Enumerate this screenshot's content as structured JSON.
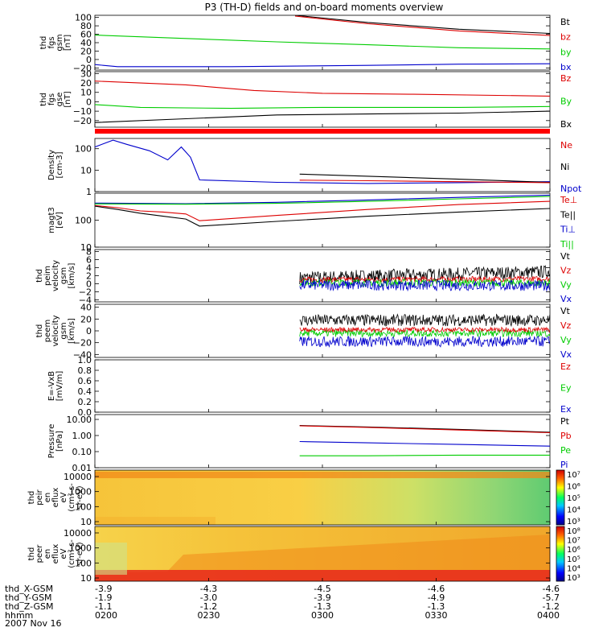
{
  "title": "P3 (TH-D) fields and on-board moments overview",
  "date": "2007 Nov 16",
  "chart_data": [
    {
      "type": "line",
      "ylabel": [
        "thd",
        "fgs",
        "gsm",
        "[nT]"
      ],
      "yticks": [
        "100",
        "80",
        "60",
        "40",
        "20",
        "0",
        "−20"
      ],
      "ylim": [
        -25,
        105
      ],
      "legend": [
        {
          "name": "Bt",
          "color": "#000000"
        },
        {
          "name": "bz",
          "color": "#dd0000"
        },
        {
          "name": "by",
          "color": "#00cc00"
        },
        {
          "name": "bx",
          "color": "#0000cc"
        }
      ],
      "series": [
        {
          "name": "Bt",
          "color": "#000000",
          "x": [
            0.44,
            0.6,
            0.8,
            1.0
          ],
          "y": [
            105,
            88,
            72,
            62
          ]
        },
        {
          "name": "bz",
          "color": "#dd0000",
          "x": [
            0.44,
            0.6,
            0.8,
            1.0
          ],
          "y": [
            103,
            85,
            68,
            57
          ]
        },
        {
          "name": "by",
          "color": "#00cc00",
          "x": [
            0.0,
            0.2,
            0.4,
            0.6,
            0.8,
            1.0
          ],
          "y": [
            58,
            50,
            42,
            35,
            28,
            25
          ]
        },
        {
          "name": "bx",
          "color": "#0000cc",
          "x": [
            0.0,
            0.05,
            0.3,
            0.6,
            0.8,
            1.0
          ],
          "y": [
            -12,
            -17,
            -17,
            -14,
            -11,
            -10
          ]
        }
      ]
    },
    {
      "type": "line",
      "ylabel": [
        "thd",
        "fgs",
        "gse",
        "[nT]"
      ],
      "yticks": [
        "30",
        "20",
        "10",
        "0",
        "−10",
        "−20"
      ],
      "ylim": [
        -27,
        32
      ],
      "legend": [
        {
          "name": "Bz",
          "color": "#dd0000"
        },
        {
          "name": "By",
          "color": "#00cc00"
        },
        {
          "name": "Bx",
          "color": "#000000"
        }
      ],
      "series": [
        {
          "name": "Bz",
          "color": "#dd0000",
          "x": [
            0.0,
            0.2,
            0.35,
            0.5,
            0.7,
            1.0
          ],
          "y": [
            22,
            18,
            12,
            9,
            8,
            6
          ]
        },
        {
          "name": "By",
          "color": "#00cc00",
          "x": [
            0.0,
            0.1,
            0.3,
            0.5,
            0.8,
            1.0
          ],
          "y": [
            -3,
            -6,
            -7,
            -6,
            -6,
            -5
          ]
        },
        {
          "name": "Bx",
          "color": "#000000",
          "x": [
            0.0,
            0.2,
            0.4,
            0.6,
            0.8,
            1.0
          ],
          "y": [
            -22,
            -18,
            -14,
            -13,
            -12,
            -10
          ]
        }
      ]
    },
    {
      "type": "line",
      "yscale": "log",
      "ylabel": [
        "Density",
        "[cm-3]"
      ],
      "yticks": [
        "100",
        "10",
        "1"
      ],
      "ylim": [
        1,
        300
      ],
      "legend": [
        {
          "name": "Ne",
          "color": "#dd0000"
        },
        {
          "name": "Ni",
          "color": "#000000"
        },
        {
          "name": "Npot",
          "color": "#0000cc"
        }
      ],
      "series": [
        {
          "name": "Npot",
          "color": "#0000cc",
          "x": [
            0.0,
            0.04,
            0.07,
            0.12,
            0.16,
            0.19,
            0.21,
            0.23,
            0.4,
            0.6,
            0.8,
            1.0
          ],
          "y": [
            120,
            250,
            160,
            80,
            30,
            120,
            40,
            3.5,
            2.7,
            2.4,
            2.6,
            2.9
          ]
        },
        {
          "name": "Ni",
          "color": "#000000",
          "x": [
            0.45,
            0.6,
            0.8,
            1.0
          ],
          "y": [
            6.5,
            5.2,
            3.8,
            2.7
          ]
        },
        {
          "name": "Ne",
          "color": "#dd0000",
          "x": [
            0.45,
            0.6,
            0.8,
            1.0
          ],
          "y": [
            3.4,
            3.2,
            2.9,
            2.6
          ]
        }
      ]
    },
    {
      "type": "line",
      "yscale": "log",
      "ylabel": [
        "magt3",
        "[eV]"
      ],
      "yticks": [
        "100",
        "10"
      ],
      "ylim": [
        10,
        1000
      ],
      "legend": [
        {
          "name": "Te⊥",
          "color": "#dd0000"
        },
        {
          "name": "Te||",
          "color": "#000000"
        },
        {
          "name": "Ti⊥",
          "color": "#0000cc"
        },
        {
          "name": "Ti||",
          "color": "#00cc00"
        }
      ],
      "series": [
        {
          "name": "Ti⊥",
          "color": "#0000cc",
          "x": [
            0.0,
            0.2,
            0.4,
            0.6,
            0.8,
            1.0
          ],
          "y": [
            430,
            410,
            460,
            560,
            700,
            850
          ]
        },
        {
          "name": "Ti||",
          "color": "#00cc00",
          "x": [
            0.0,
            0.2,
            0.4,
            0.6,
            0.8,
            1.0
          ],
          "y": [
            400,
            390,
            420,
            500,
            620,
            760
          ]
        },
        {
          "name": "Te⊥",
          "color": "#dd0000",
          "x": [
            0.0,
            0.05,
            0.1,
            0.15,
            0.2,
            0.23,
            0.4,
            0.6,
            0.8,
            1.0
          ],
          "y": [
            350,
            290,
            220,
            200,
            170,
            95,
            150,
            250,
            380,
            500
          ]
        },
        {
          "name": "Te||",
          "color": "#000000",
          "x": [
            0.0,
            0.05,
            0.1,
            0.15,
            0.2,
            0.23,
            0.4,
            0.6,
            0.8,
            1.0
          ],
          "y": [
            330,
            250,
            180,
            140,
            110,
            60,
            90,
            140,
            200,
            270
          ]
        }
      ]
    },
    {
      "type": "line",
      "ylabel": [
        "thd",
        "peim",
        "velocity",
        "gsm",
        "[km/s]"
      ],
      "yticks": [
        "8",
        "6",
        "4",
        "2",
        "0",
        "−2",
        "−4"
      ],
      "ylim": [
        -4.5,
        8.5
      ],
      "legend": [
        {
          "name": "Vt",
          "color": "#000000"
        },
        {
          "name": "Vz",
          "color": "#dd0000"
        },
        {
          "name": "Vy",
          "color": "#00cc00"
        },
        {
          "name": "Vx",
          "color": "#0000cc"
        }
      ],
      "noisy_series": [
        {
          "name": "Vt",
          "color": "#000000",
          "start": 0.45,
          "mean_start": 1.5,
          "mean_end": 3.0,
          "spread": 1.6
        },
        {
          "name": "Vz",
          "color": "#dd0000",
          "start": 0.45,
          "mean_start": 1.0,
          "mean_end": 1.2,
          "spread": 0.7
        },
        {
          "name": "Vy",
          "color": "#00cc00",
          "start": 0.45,
          "mean_start": 0.3,
          "mean_end": 0.2,
          "spread": 0.9
        },
        {
          "name": "Vx",
          "color": "#0000cc",
          "start": 0.45,
          "mean_start": -0.3,
          "mean_end": -0.5,
          "spread": 1.3
        }
      ]
    },
    {
      "type": "line",
      "ylabel": [
        "thd",
        "peem",
        "velocity",
        "gsm",
        "[km/s]"
      ],
      "yticks": [
        "40",
        "20",
        "0",
        "−20",
        "−40"
      ],
      "ylim": [
        -45,
        45
      ],
      "legend": [
        {
          "name": "Vt",
          "color": "#000000"
        },
        {
          "name": "Vz",
          "color": "#dd0000"
        },
        {
          "name": "Vy",
          "color": "#00cc00"
        },
        {
          "name": "Vx",
          "color": "#0000cc"
        }
      ],
      "noisy_series": [
        {
          "name": "Vt",
          "color": "#000000",
          "start": 0.45,
          "mean_start": 18,
          "mean_end": 18,
          "spread": 10
        },
        {
          "name": "Vx",
          "color": "#0000cc",
          "start": 0.45,
          "mean_start": -18,
          "mean_end": -18,
          "spread": 9
        },
        {
          "name": "Vy",
          "color": "#00cc00",
          "start": 0.45,
          "mean_start": -4,
          "mean_end": -4,
          "spread": 6
        },
        {
          "name": "Vz",
          "color": "#dd0000",
          "start": 0.45,
          "mean_start": 2,
          "mean_end": 2,
          "spread": 4
        }
      ]
    },
    {
      "type": "line",
      "ylabel": [
        "E=-VxB",
        "[mV/m]"
      ],
      "yticks": [
        "1.0",
        "0.8",
        "0.6",
        "0.4",
        "0.2",
        "0.0"
      ],
      "ylim": [
        0,
        1.0
      ],
      "legend": [
        {
          "name": "Ez",
          "color": "#dd0000"
        },
        {
          "name": "Ey",
          "color": "#00cc00"
        },
        {
          "name": "Ex",
          "color": "#0000cc"
        }
      ],
      "series": []
    },
    {
      "type": "line",
      "yscale": "log",
      "ylabel": [
        "Pressure",
        "[nPa]"
      ],
      "yticks": [
        "10.00",
        "1.00",
        "0.10",
        "0.01"
      ],
      "ylim": [
        0.01,
        20
      ],
      "legend": [
        {
          "name": "Pt",
          "color": "#000000"
        },
        {
          "name": "Pb",
          "color": "#dd0000"
        },
        {
          "name": "Pe",
          "color": "#00cc00"
        },
        {
          "name": "Pi",
          "color": "#0000cc"
        }
      ],
      "series": [
        {
          "name": "Pt",
          "color": "#000000",
          "x": [
            0.45,
            0.6,
            0.8,
            1.0
          ],
          "y": [
            4.2,
            3.4,
            2.4,
            1.6
          ]
        },
        {
          "name": "Pb",
          "color": "#dd0000",
          "x": [
            0.45,
            0.6,
            0.8,
            1.0
          ],
          "y": [
            4.0,
            3.2,
            2.2,
            1.5
          ]
        },
        {
          "name": "Pi",
          "color": "#0000cc",
          "x": [
            0.45,
            0.6,
            0.8,
            1.0
          ],
          "y": [
            0.42,
            0.35,
            0.28,
            0.22
          ]
        },
        {
          "name": "Pe",
          "color": "#00cc00",
          "x": [
            0.45,
            0.6,
            0.8,
            1.0
          ],
          "y": [
            0.055,
            0.055,
            0.06,
            0.06
          ]
        }
      ]
    },
    {
      "type": "heatmap",
      "ylabel": [
        "thd",
        "peir",
        "en",
        "eflux",
        "eV",
        "(cm²-s-",
        "sr-eV)"
      ],
      "yticks": [
        "10000",
        "1000",
        "100",
        "10"
      ],
      "colorbar_ticks": [
        "10⁷",
        "10⁶",
        "10⁵",
        "10⁴",
        "10³"
      ],
      "color_range_log10": [
        3,
        7.5
      ],
      "description_values": {
        "background": 6.3,
        "high_energy_band": 7.0,
        "late_low_energy": 5.0
      }
    },
    {
      "type": "heatmap",
      "ylabel": [
        "thd",
        "peer",
        "en",
        "eflux",
        "eV",
        "(cm²-s-",
        "sr-eV)"
      ],
      "yticks": [
        "10000",
        "1000",
        "100",
        "10"
      ],
      "colorbar_ticks": [
        "10⁸",
        "10⁷",
        "10⁶",
        "10⁵",
        "10⁴",
        "10³"
      ],
      "color_range_log10": [
        3,
        8.5
      ],
      "description_values": {
        "background": 6.4,
        "mid_band": 7.3,
        "low_energy_band": 7.8
      }
    }
  ],
  "xaxis": {
    "row_labels": [
      "thd_X-GSM",
      "thd_Y-GSM",
      "thd_Z-GSM",
      "hhmm"
    ],
    "columns": [
      {
        "values": [
          "-3.9",
          "-1.9",
          "-1.1",
          "0200"
        ]
      },
      {
        "values": [
          "-4.3",
          "-3.0",
          "-1.2",
          "0230"
        ]
      },
      {
        "values": [
          "-4.5",
          "-3.9",
          "-1.3",
          "0300"
        ]
      },
      {
        "values": [
          "-4.6",
          "-4.9",
          "-1.3",
          "0330"
        ]
      },
      {
        "values": [
          "-4.6",
          "-5.7",
          "-1.2",
          "0400"
        ]
      }
    ]
  }
}
